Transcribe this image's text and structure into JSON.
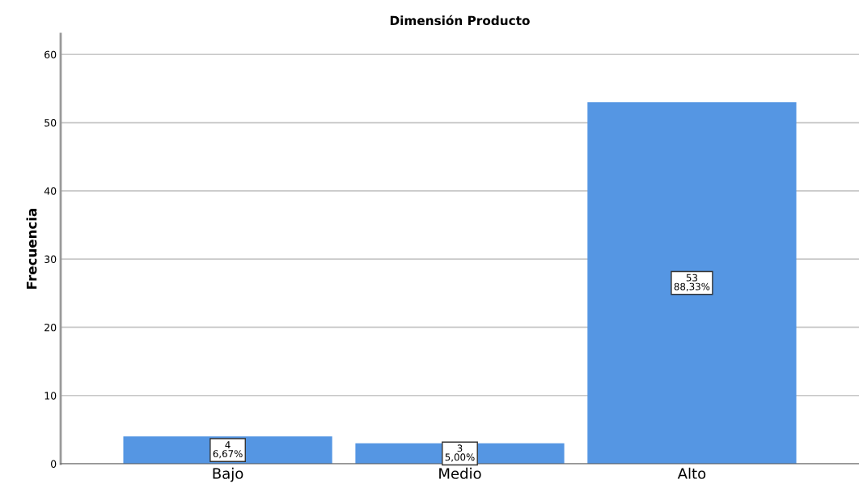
{
  "chart_data": {
    "type": "bar",
    "title": "Dimensión Producto",
    "ylabel": "Frecuencia",
    "categories": [
      "Bajo",
      "Medio",
      "Alto"
    ],
    "values": [
      4,
      3,
      53
    ],
    "color": "#5596e3",
    "value_labels": [
      "4\n6,67%",
      "3\n5,00%",
      "53\n88,33%"
    ],
    "ylim": [
      0,
      63
    ],
    "yticks": [
      0,
      10,
      20,
      30,
      40,
      50,
      60
    ],
    "grid": "y",
    "legend": false
  }
}
